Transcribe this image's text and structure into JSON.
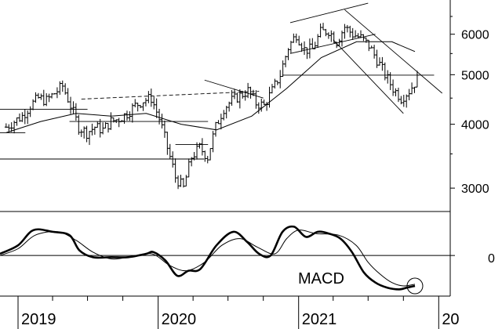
{
  "chart_data": [
    {
      "type": "ohlc",
      "title": "",
      "xlabel": "",
      "ylabel": "",
      "y_scale": "log",
      "ylim": [
        2700,
        7000
      ],
      "y_ticks": [
        3000,
        4000,
        5000,
        6000
      ],
      "y_tick_labels": [
        "3000",
        "4000",
        "5000",
        "6000"
      ],
      "x_tick_labels": [
        "2019",
        "2020",
        "2021",
        "20"
      ],
      "x_tick_dates": [
        "2019-01-01",
        "2020-01-01",
        "2021-01-01",
        "2022-01-01"
      ],
      "x_range": [
        "2018-11-15",
        "2022-01-31"
      ],
      "x_minor_ticks": "quarterly",
      "grid": false,
      "price_series": {
        "dates": [
          "2018-12-01",
          "2018-12-22",
          "2019-01-12",
          "2019-02-02",
          "2019-02-23",
          "2019-03-16",
          "2019-04-06",
          "2019-04-27",
          "2019-05-18",
          "2019-06-08",
          "2019-06-29",
          "2019-07-20",
          "2019-08-10",
          "2019-08-31",
          "2019-09-21",
          "2019-10-12",
          "2019-11-02",
          "2019-11-23",
          "2019-12-14",
          "2020-01-04",
          "2020-01-25",
          "2020-02-15",
          "2020-03-07",
          "2020-03-28",
          "2020-04-18",
          "2020-05-09",
          "2020-05-30",
          "2020-06-20",
          "2020-07-11",
          "2020-08-01",
          "2020-08-22",
          "2020-09-12",
          "2020-10-03",
          "2020-10-24",
          "2020-11-14",
          "2020-12-05",
          "2020-12-26",
          "2021-01-16",
          "2021-02-06",
          "2021-02-27",
          "2021-03-20",
          "2021-04-10",
          "2021-05-01",
          "2021-05-22",
          "2021-06-12",
          "2021-07-03",
          "2021-07-24",
          "2021-08-14",
          "2021-09-04",
          "2021-09-25",
          "2021-10-16",
          "2021-11-06"
        ],
        "close": [
          3950,
          4050,
          4150,
          4350,
          4500,
          4450,
          4600,
          4750,
          4350,
          3950,
          3850,
          3950,
          3900,
          4050,
          4100,
          4200,
          4350,
          4450,
          4500,
          4100,
          3600,
          3150,
          3000,
          3450,
          3600,
          3450,
          3950,
          4300,
          4450,
          4550,
          4650,
          4400,
          4350,
          4650,
          5000,
          5650,
          6000,
          5600,
          5600,
          6050,
          6100,
          5800,
          6200,
          6000,
          5900,
          5700,
          5350,
          5000,
          4700,
          4500,
          4650,
          4900
        ]
      },
      "moving_average": {
        "dates": [
          "2018-12-01",
          "2019-03-01",
          "2019-06-01",
          "2019-09-01",
          "2019-12-01",
          "2020-03-01",
          "2020-06-01",
          "2020-09-01",
          "2020-12-01",
          "2021-03-01",
          "2021-06-01",
          "2021-09-01",
          "2021-10-31"
        ],
        "values": [
          3850,
          4050,
          4200,
          4150,
          4200,
          4000,
          3900,
          4150,
          4700,
          5400,
          5800,
          5800,
          5550
        ]
      },
      "trendlines": [
        {
          "from": [
            "2018-11-15",
            4280
          ],
          "to": [
            "2019-07-01",
            4280
          ]
        },
        {
          "from": [
            "2018-11-15",
            3850
          ],
          "to": [
            "2019-01-20",
            3850
          ]
        },
        {
          "from": [
            "2018-11-15",
            3420
          ],
          "to": [
            "2020-04-30",
            3420
          ]
        },
        {
          "from": [
            "2019-05-15",
            4050
          ],
          "to": [
            "2020-05-10",
            4050
          ]
        },
        {
          "from": [
            "2020-02-15",
            3650
          ],
          "to": [
            "2020-05-10",
            3650
          ]
        },
        {
          "from": [
            "2019-06-15",
            4480
          ],
          "to": [
            "2020-09-20",
            4640
          ],
          "style": "dashed"
        },
        {
          "from": [
            "2020-05-01",
            4880
          ],
          "to": [
            "2020-10-01",
            4500
          ]
        },
        {
          "from": [
            "2020-11-20",
            4990
          ],
          "to": [
            "2021-12-20",
            4990
          ]
        },
        {
          "from": [
            "2020-12-10",
            6320
          ],
          "to": [
            "2021-07-01",
            6900
          ]
        },
        {
          "from": [
            "2020-12-10",
            5500
          ],
          "to": [
            "2021-07-20",
            6000
          ]
        },
        {
          "from": [
            "2021-05-01",
            6700
          ],
          "to": [
            "2022-01-10",
            4600
          ]
        },
        {
          "from": [
            "2021-04-01",
            5850
          ],
          "to": [
            "2021-10-01",
            4200
          ]
        }
      ]
    },
    {
      "type": "line",
      "title": "",
      "label": "MACD",
      "y_tick_labels": [
        "0"
      ],
      "ylim": [
        -1.2,
        1.3
      ],
      "zero_line": true,
      "grid": false,
      "series": [
        {
          "style": "thick",
          "dates": [
            "2018-11-15",
            "2019-01-01",
            "2019-02-10",
            "2019-04-01",
            "2019-05-15",
            "2019-06-10",
            "2019-07-15",
            "2019-09-01",
            "2019-10-15",
            "2019-12-01",
            "2019-12-20",
            "2020-01-20",
            "2020-02-20",
            "2020-03-20",
            "2020-04-20",
            "2020-06-01",
            "2020-07-15",
            "2020-08-20",
            "2020-09-20",
            "2020-10-20",
            "2020-11-20",
            "2020-12-20",
            "2021-01-20",
            "2021-02-20",
            "2021-03-20",
            "2021-04-20",
            "2021-05-20",
            "2021-06-20",
            "2021-07-20",
            "2021-08-20",
            "2021-09-20",
            "2021-10-10",
            "2021-10-31"
          ],
          "values": [
            0.05,
            0.3,
            0.75,
            0.7,
            0.6,
            0.15,
            -0.05,
            -0.05,
            -0.05,
            0.05,
            0.1,
            -0.15,
            -0.6,
            -0.45,
            -0.4,
            0.3,
            0.7,
            0.4,
            0.05,
            0.0,
            0.7,
            0.85,
            0.55,
            0.7,
            0.65,
            0.5,
            0.1,
            -0.5,
            -0.8,
            -0.95,
            -1.0,
            -0.95,
            -0.9
          ]
        },
        {
          "style": "thin",
          "dates": [
            "2018-11-15",
            "2019-01-01",
            "2019-02-15",
            "2019-04-15",
            "2019-06-01",
            "2019-07-15",
            "2019-09-01",
            "2019-10-15",
            "2019-12-15",
            "2020-02-01",
            "2020-03-15",
            "2020-05-01",
            "2020-06-15",
            "2020-08-01",
            "2020-09-15",
            "2020-10-31",
            "2020-12-01",
            "2021-01-01",
            "2021-02-15",
            "2021-04-15",
            "2021-05-31",
            "2021-07-01",
            "2021-08-01",
            "2021-09-01",
            "2021-10-01",
            "2021-10-31"
          ],
          "values": [
            0.0,
            0.2,
            0.6,
            0.7,
            0.45,
            0.1,
            -0.1,
            -0.05,
            0.05,
            -0.3,
            -0.45,
            -0.2,
            0.3,
            0.5,
            0.25,
            0.05,
            0.5,
            0.75,
            0.65,
            0.6,
            0.3,
            -0.2,
            -0.55,
            -0.8,
            -0.9,
            -0.85
          ]
        }
      ],
      "highlight_circle_date": "2021-10-31"
    }
  ]
}
